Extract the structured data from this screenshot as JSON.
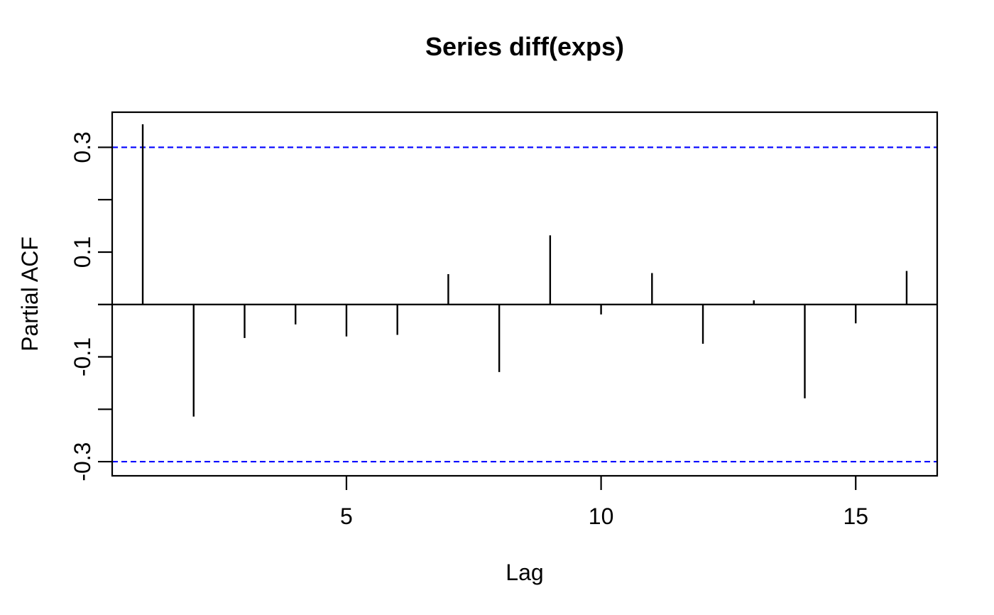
{
  "figure": {
    "title": "Series  diff(exps)",
    "xlabel": "Lag",
    "ylabel": "Partial ACF"
  },
  "chart_data": {
    "type": "stem",
    "title": "Series  diff(exps)",
    "xlabel": "Lag",
    "ylabel": "Partial ACF",
    "x": [
      1,
      2,
      3,
      4,
      5,
      6,
      7,
      8,
      9,
      10,
      11,
      12,
      13,
      14,
      15,
      16
    ],
    "values": [
      0.344,
      -0.214,
      -0.064,
      -0.038,
      -0.061,
      -0.058,
      0.058,
      -0.129,
      0.132,
      -0.019,
      0.06,
      -0.075,
      0.008,
      -0.179,
      -0.036,
      0.064
    ],
    "baseline": 0,
    "confidence_interval": {
      "upper": 0.3,
      "lower": -0.3,
      "linestyle": "dashed",
      "color": "#0000FF"
    },
    "xlim": [
      0.4,
      16.6
    ],
    "ylim": [
      -0.327,
      0.367
    ],
    "xticks": [
      5,
      10,
      15
    ],
    "yticks": [
      -0.3,
      -0.2,
      -0.1,
      0,
      0.1,
      0.2,
      0.3
    ],
    "yticks_labeled": [
      -0.3,
      -0.1,
      0.1,
      0.3
    ],
    "grid": false,
    "legend": "none",
    "series_color": "#000000",
    "axis_color": "#000000",
    "background_color": "#FFFFFF"
  }
}
